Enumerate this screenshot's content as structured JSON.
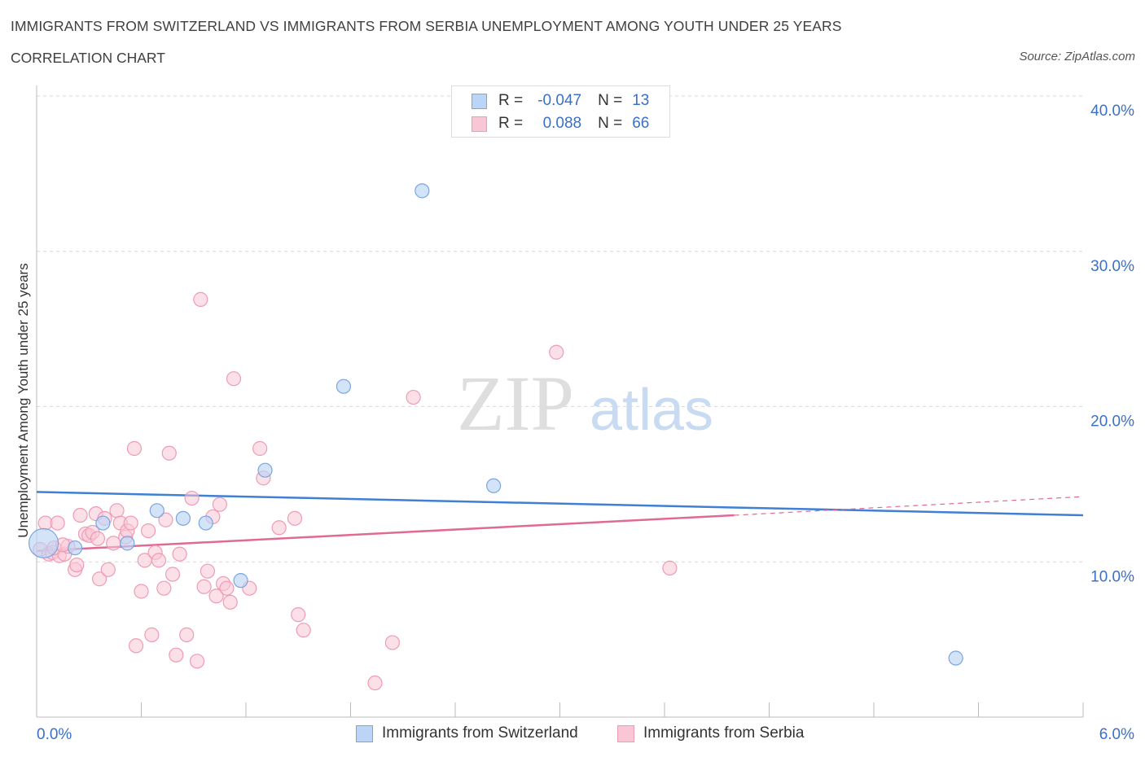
{
  "header": {
    "title": "IMMIGRANTS FROM SWITZERLAND VS IMMIGRANTS FROM SERBIA UNEMPLOYMENT AMONG YOUTH UNDER 25 YEARS",
    "subtitle": "CORRELATION CHART",
    "source": "Source: ZipAtlas.com"
  },
  "watermark": {
    "zip": "ZIP",
    "atlas": "atlas"
  },
  "stats": {
    "switzerland": {
      "r_label": "R =",
      "r_value": "-0.047",
      "n_label": "N =",
      "n_value": "13"
    },
    "serbia": {
      "r_label": "R =",
      "r_value": "0.088",
      "n_label": "N =",
      "n_value": "66"
    }
  },
  "colors": {
    "switzerland_fill": "#bcd4f5",
    "switzerland_stroke": "#7aa5e0",
    "switzerland_line": "#3f7fd4",
    "serbia_fill": "#f9c6d6",
    "serbia_stroke": "#ee9bb6",
    "serbia_line": "#e06a96",
    "tick_text": "#3a70c8",
    "grid": "#d9d9d9"
  },
  "chart_data": {
    "type": "scatter",
    "title": "IMMIGRANTS FROM SWITZERLAND VS IMMIGRANTS FROM SERBIA UNEMPLOYMENT AMONG YOUTH UNDER 25 YEARS",
    "xlabel": "",
    "ylabel": "Unemployment Among Youth under 25 years",
    "xlim": [
      0,
      6
    ],
    "ylim": [
      0,
      40
    ],
    "x_ticks": [
      0,
      6
    ],
    "x_tick_labels": [
      "0.0%",
      "6.0%"
    ],
    "y_ticks": [
      10,
      20,
      30,
      40
    ],
    "y_tick_labels": [
      "10.0%",
      "20.0%",
      "30.0%",
      "40.0%"
    ],
    "grid": true,
    "legend_position": "bottom-center",
    "series": [
      {
        "name": "Immigrants from Switzerland",
        "points": [
          [
            0.04,
            11.2
          ],
          [
            0.22,
            10.9
          ],
          [
            0.38,
            12.5
          ],
          [
            0.52,
            11.2
          ],
          [
            0.69,
            13.3
          ],
          [
            0.84,
            12.8
          ],
          [
            0.97,
            12.5
          ],
          [
            1.17,
            8.8
          ],
          [
            1.31,
            15.9
          ],
          [
            1.76,
            21.3
          ],
          [
            2.21,
            33.9
          ],
          [
            2.62,
            14.9
          ],
          [
            5.27,
            3.8
          ]
        ],
        "trend": {
          "x": [
            0,
            6
          ],
          "y": [
            14.5,
            13.0
          ]
        }
      },
      {
        "name": "Immigrants from Serbia",
        "points": [
          [
            0.02,
            10.8
          ],
          [
            0.05,
            12.5
          ],
          [
            0.07,
            10.5
          ],
          [
            0.09,
            10.6
          ],
          [
            0.12,
            12.5
          ],
          [
            0.13,
            10.4
          ],
          [
            0.16,
            10.5
          ],
          [
            0.18,
            11.0
          ],
          [
            0.22,
            9.5
          ],
          [
            0.23,
            9.8
          ],
          [
            0.25,
            13.0
          ],
          [
            0.28,
            11.8
          ],
          [
            0.3,
            11.7
          ],
          [
            0.32,
            11.9
          ],
          [
            0.34,
            13.1
          ],
          [
            0.35,
            11.5
          ],
          [
            0.36,
            8.9
          ],
          [
            0.39,
            12.8
          ],
          [
            0.41,
            9.5
          ],
          [
            0.44,
            11.2
          ],
          [
            0.46,
            13.3
          ],
          [
            0.48,
            12.5
          ],
          [
            0.51,
            11.6
          ],
          [
            0.52,
            12.0
          ],
          [
            0.54,
            12.5
          ],
          [
            0.56,
            17.3
          ],
          [
            0.57,
            4.6
          ],
          [
            0.6,
            8.1
          ],
          [
            0.62,
            10.1
          ],
          [
            0.64,
            12.0
          ],
          [
            0.66,
            5.3
          ],
          [
            0.68,
            10.6
          ],
          [
            0.7,
            10.1
          ],
          [
            0.73,
            8.3
          ],
          [
            0.74,
            12.7
          ],
          [
            0.76,
            17.0
          ],
          [
            0.78,
            9.2
          ],
          [
            0.8,
            4.0
          ],
          [
            0.82,
            10.5
          ],
          [
            0.86,
            5.3
          ],
          [
            0.89,
            14.1
          ],
          [
            0.92,
            3.6
          ],
          [
            0.94,
            26.9
          ],
          [
            0.96,
            8.4
          ],
          [
            0.98,
            9.4
          ],
          [
            1.01,
            12.9
          ],
          [
            1.03,
            7.8
          ],
          [
            1.05,
            13.7
          ],
          [
            1.07,
            8.6
          ],
          [
            1.09,
            8.3
          ],
          [
            1.11,
            7.4
          ],
          [
            1.13,
            21.8
          ],
          [
            1.22,
            8.3
          ],
          [
            1.28,
            17.3
          ],
          [
            1.3,
            15.4
          ],
          [
            1.39,
            12.2
          ],
          [
            1.48,
            12.8
          ],
          [
            1.5,
            6.6
          ],
          [
            1.53,
            5.6
          ],
          [
            1.94,
            2.2
          ],
          [
            2.04,
            4.8
          ],
          [
            2.16,
            20.6
          ],
          [
            2.98,
            23.5
          ],
          [
            3.63,
            9.6
          ],
          [
            0.1,
            10.9
          ],
          [
            0.15,
            11.1
          ]
        ],
        "trend": {
          "x": [
            0,
            4.0
          ],
          "y": [
            10.7,
            13.0
          ]
        },
        "trend_dashed": {
          "x": [
            4.0,
            6.0
          ],
          "y": [
            13.0,
            14.2
          ]
        }
      }
    ]
  }
}
